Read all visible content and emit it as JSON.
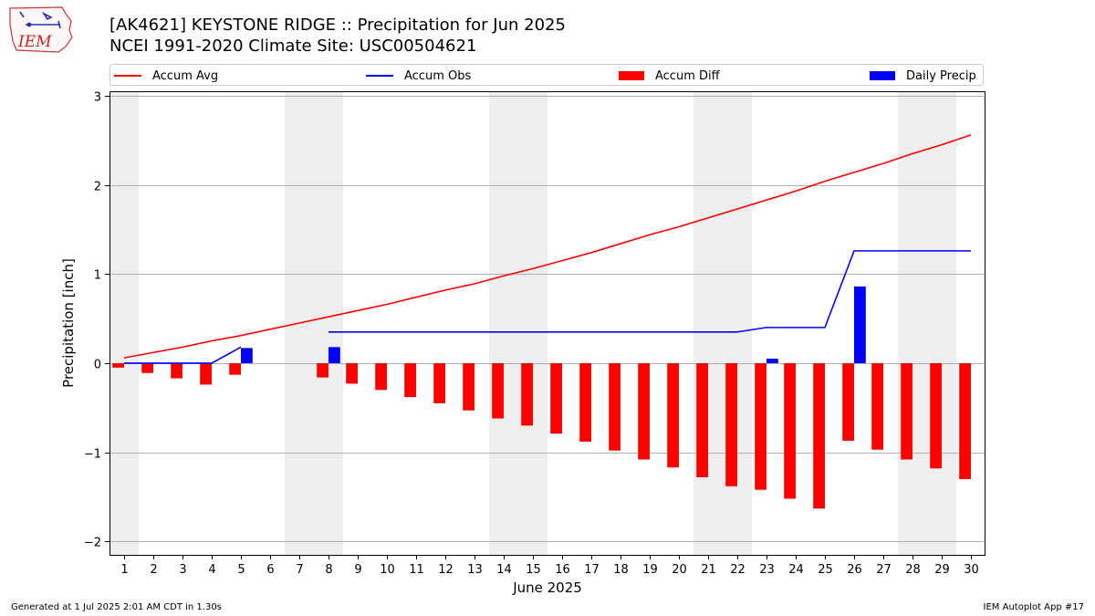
{
  "header": {
    "title_line1": "[AK4621] KEYSTONE RIDGE :: Precipitation for Jun 2025",
    "title_line2": "NCEI 1991-2020 Climate Site: USC00504621",
    "logo_text": "IEM"
  },
  "legend": {
    "items": [
      {
        "label": "Accum Avg",
        "color": "#ff0000",
        "kind": "line"
      },
      {
        "label": "Accum Obs",
        "color": "#0000ff",
        "kind": "line"
      },
      {
        "label": "Accum Diff",
        "color": "#ff0000",
        "kind": "bar"
      },
      {
        "label": "Daily Precip",
        "color": "#0000ff",
        "kind": "bar"
      }
    ]
  },
  "footer": {
    "left": "Generated at 1 Jul 2025 2:01 AM CDT in 1.30s",
    "right": "IEM Autoplot App #17"
  },
  "chart_data": {
    "type": "bar",
    "xlabel": "June 2025",
    "ylabel": "Precipitation [inch]",
    "ylim": [
      -2.15,
      3.05
    ],
    "xlim": [
      0.5,
      30.5
    ],
    "yticks": [
      -2,
      -1,
      0,
      1,
      2,
      3
    ],
    "ytick_labels": [
      "−2",
      "−1",
      "0",
      "1",
      "2",
      "3"
    ],
    "x": [
      1,
      2,
      3,
      4,
      5,
      6,
      7,
      8,
      9,
      10,
      11,
      12,
      13,
      14,
      15,
      16,
      17,
      18,
      19,
      20,
      21,
      22,
      23,
      24,
      25,
      26,
      27,
      28,
      29,
      30
    ],
    "grid": "horizontal",
    "weekend_shading": [
      [
        0.5,
        1.5
      ],
      [
        6.5,
        8.5
      ],
      [
        13.5,
        15.5
      ],
      [
        20.5,
        22.5
      ],
      [
        27.5,
        29.5
      ]
    ],
    "series": [
      {
        "name": "Accum Avg",
        "type": "line",
        "color": "#ff0000",
        "values": [
          0.06,
          0.12,
          0.18,
          0.25,
          0.31,
          0.38,
          0.45,
          0.52,
          0.59,
          0.66,
          0.74,
          0.82,
          0.89,
          0.98,
          1.06,
          1.15,
          1.24,
          1.34,
          1.44,
          1.53,
          1.63,
          1.73,
          1.83,
          1.93,
          2.04,
          2.14,
          2.24,
          2.35,
          2.45,
          2.56
        ]
      },
      {
        "name": "Accum Obs",
        "type": "line",
        "color": "#0000ff",
        "values": [
          0.0,
          0.0,
          0.0,
          0.0,
          0.18,
          null,
          null,
          0.35,
          0.35,
          0.35,
          0.35,
          0.35,
          0.35,
          0.35,
          0.35,
          0.35,
          0.35,
          0.35,
          0.35,
          0.35,
          0.35,
          0.35,
          0.4,
          0.4,
          0.4,
          1.26,
          1.26,
          1.26,
          1.26,
          1.26
        ]
      },
      {
        "name": "Accum Diff",
        "type": "bar",
        "color": "#ff0000",
        "values": [
          -0.05,
          -0.11,
          -0.17,
          -0.24,
          -0.13,
          null,
          null,
          -0.16,
          -0.23,
          -0.3,
          -0.38,
          -0.45,
          -0.53,
          -0.62,
          -0.7,
          -0.79,
          -0.88,
          -0.98,
          -1.08,
          -1.17,
          -1.28,
          -1.38,
          -1.42,
          -1.52,
          -1.63,
          -0.87,
          -0.97,
          -1.08,
          -1.18,
          -1.3
        ]
      },
      {
        "name": "Daily Precip",
        "type": "bar",
        "color": "#0000ff",
        "values": [
          0,
          0,
          0,
          0,
          0.17,
          0,
          0,
          0.18,
          0,
          0,
          0,
          0,
          0,
          0,
          0,
          0,
          0,
          0,
          0,
          0,
          0,
          0,
          0.05,
          0,
          0,
          0.86,
          0,
          0,
          0,
          0
        ]
      }
    ]
  }
}
